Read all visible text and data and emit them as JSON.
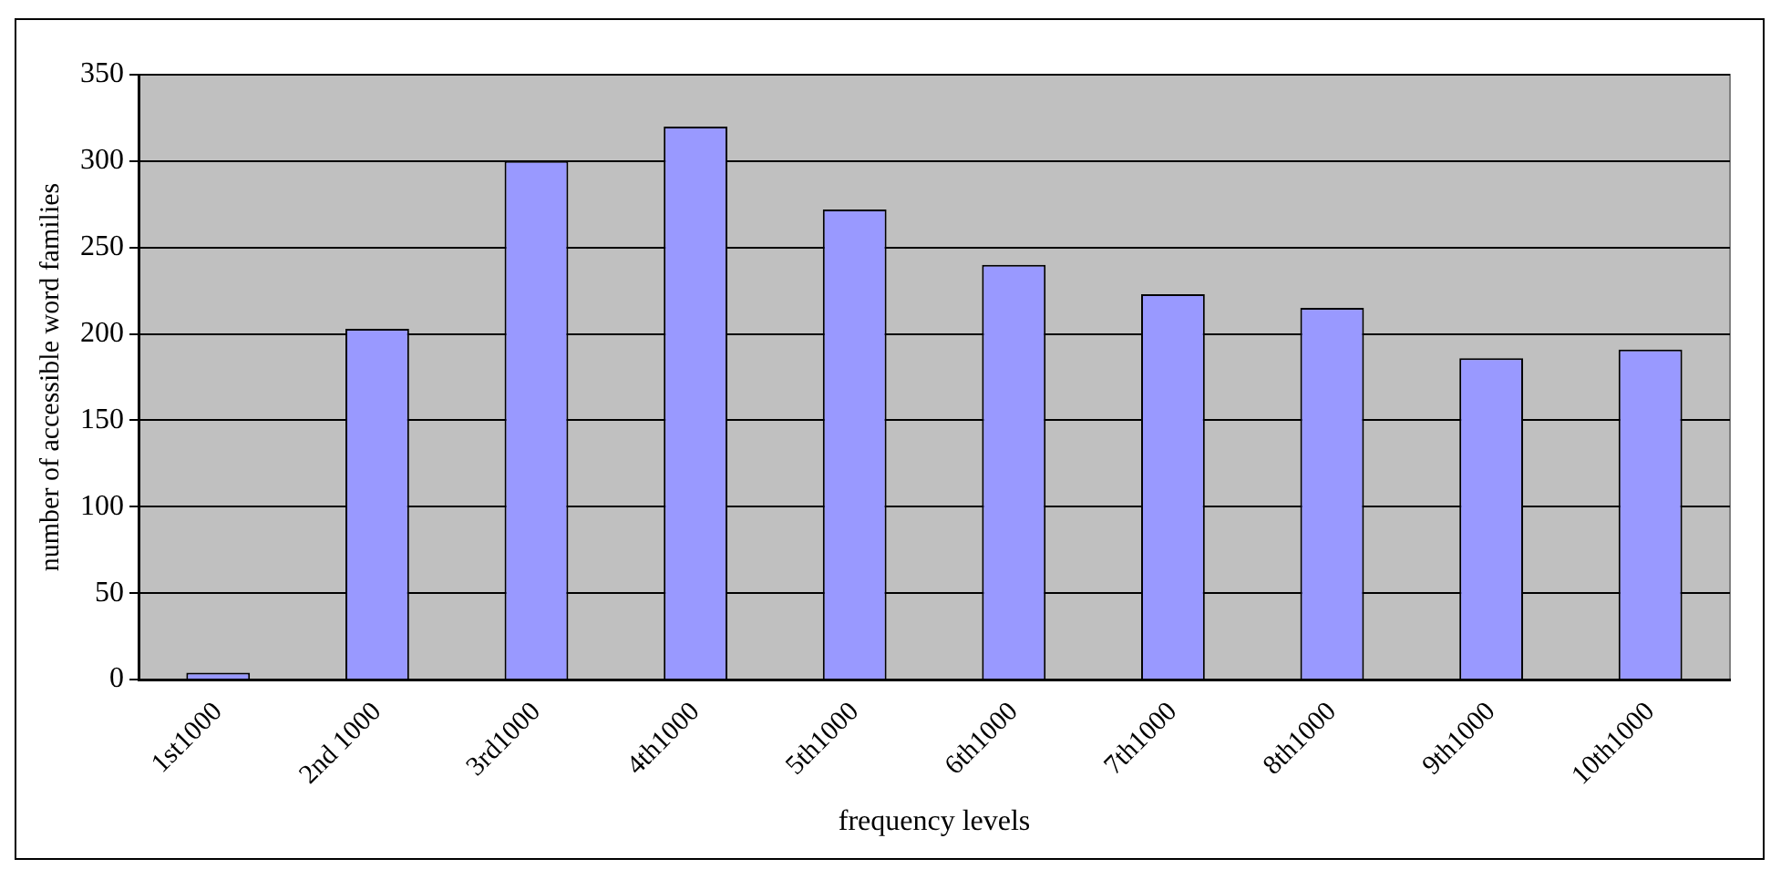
{
  "chart_data": {
    "type": "bar",
    "xlabel": "frequency levels",
    "ylabel": "number of accessible word families",
    "categories": [
      "1st1000",
      "2nd 1000",
      "3rd1000",
      "4th1000",
      "5th1000",
      "6th1000",
      "7th1000",
      "8th1000",
      "9th1000",
      "10th1000"
    ],
    "values": [
      4,
      203,
      300,
      320,
      272,
      240,
      223,
      215,
      186,
      191
    ],
    "color": "#9999ff",
    "ylim": [
      0,
      350
    ],
    "yticks": [
      0,
      50,
      100,
      150,
      200,
      250,
      300,
      350
    ],
    "grid": "y",
    "legend": false
  }
}
